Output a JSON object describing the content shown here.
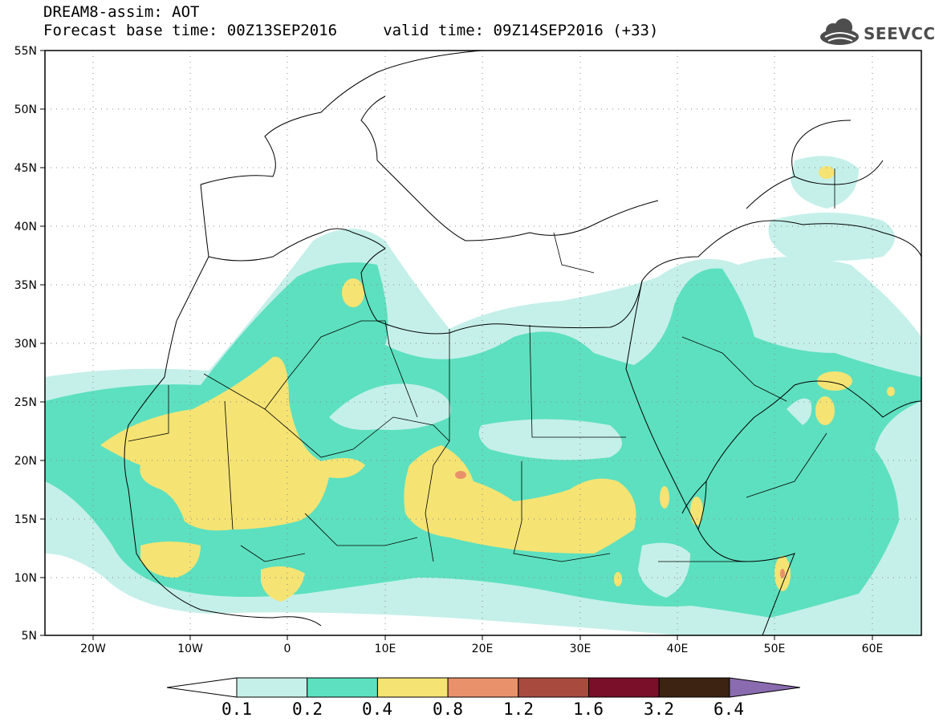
{
  "title": {
    "line1": "DREAM8-assim: AOT",
    "line2": "Forecast base time: 00Z13SEP2016     valid time: 09Z14SEP2016 (+33)"
  },
  "logo": {
    "text": "SEEVCCC",
    "icon": "cloud-icon"
  },
  "map": {
    "projection": "lat-lon",
    "lon_range": [
      -25,
      65
    ],
    "lat_range": [
      5,
      55
    ],
    "lat_ticks": [
      "55N",
      "50N",
      "45N",
      "40N",
      "35N",
      "30N",
      "25N",
      "20N",
      "15N",
      "10N",
      "5N"
    ],
    "lon_ticks": [
      "20W",
      "10W",
      "0",
      "10E",
      "20E",
      "30E",
      "40E",
      "50E",
      "60E"
    ],
    "grid": "dotted"
  },
  "colorbar": {
    "labels": [
      "0.1",
      "0.2",
      "0.4",
      "0.8",
      "1.2",
      "1.6",
      "3.2",
      "6.4"
    ],
    "colors": [
      "#ffffff",
      "#c5f0ea",
      "#5de0bf",
      "#f5e374",
      "#e8916a",
      "#a84a3e",
      "#7a0f2a",
      "#3d2412",
      "#8a6bb0"
    ]
  }
}
